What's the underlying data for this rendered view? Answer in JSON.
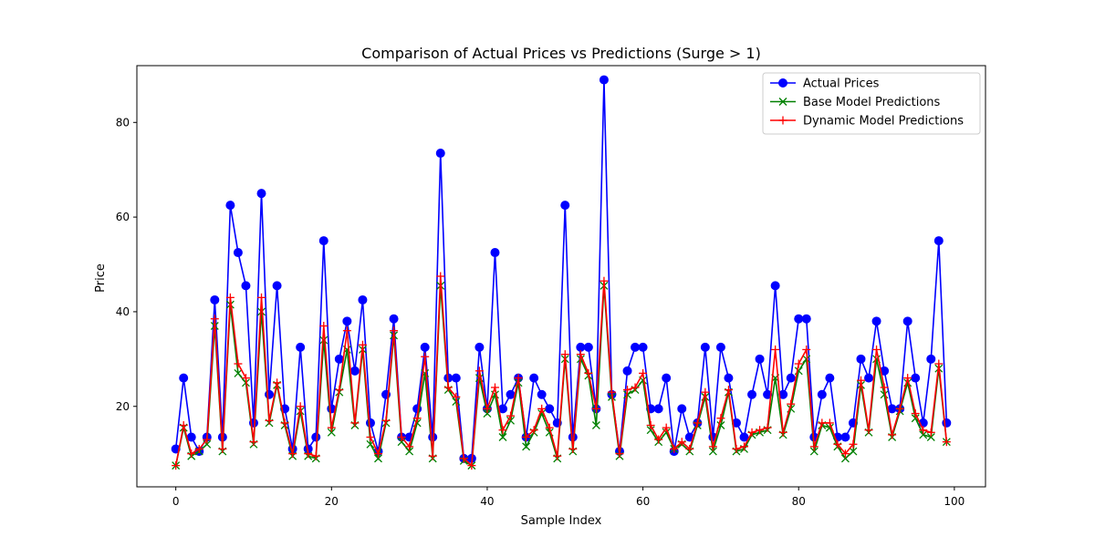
{
  "chart_data": {
    "type": "line",
    "title": "Comparison of Actual Prices vs Predictions (Surge > 1)",
    "xlabel": "Sample Index",
    "ylabel": "Price",
    "xlim": [
      -5,
      104
    ],
    "ylim": [
      3,
      92
    ],
    "xticks": [
      0,
      20,
      40,
      60,
      80,
      100
    ],
    "yticks": [
      20,
      40,
      60,
      80
    ],
    "grid": false,
    "legend_position": "top-right",
    "series": [
      {
        "name": "Actual Prices",
        "color": "#0000ff",
        "marker": "circle",
        "values": [
          11,
          26,
          13.5,
          10.5,
          13.5,
          42.5,
          13.5,
          62.5,
          52.5,
          45.5,
          16.5,
          65,
          22.5,
          45.5,
          19.5,
          11,
          32.5,
          11,
          13.5,
          55,
          19.5,
          30,
          38,
          27.5,
          42.5,
          16.5,
          10.5,
          22.5,
          38.5,
          13.5,
          13.5,
          19.5,
          32.5,
          13.5,
          73.5,
          26,
          26,
          9,
          9,
          32.5,
          19.5,
          52.5,
          19.5,
          22.5,
          26,
          13.5,
          26,
          22.5,
          19.5,
          16.5,
          62.5,
          13.5,
          32.5,
          32.5,
          19.5,
          89,
          22.5,
          10.5,
          27.5,
          32.5,
          32.5,
          19.5,
          19.5,
          26,
          10.5,
          19.5,
          13.5,
          16.5,
          32.5,
          13.5,
          32.5,
          26,
          16.5,
          13.5,
          22.5,
          30,
          22.5,
          45.5,
          22.5,
          26,
          38.5,
          38.5,
          13.5,
          22.5,
          26,
          13.5,
          13.5,
          16.5,
          30,
          26,
          38,
          27.5,
          19.5,
          19.5,
          38,
          26,
          16.5,
          30,
          55,
          16.5
        ]
      },
      {
        "name": "Base Model Predictions",
        "color": "#008000",
        "marker": "x",
        "values": [
          7.5,
          15.5,
          9.5,
          10.5,
          12,
          37,
          10.5,
          41.5,
          27,
          25,
          12,
          40,
          16.5,
          24.5,
          16,
          9.5,
          19,
          9.5,
          9,
          34,
          14.5,
          23,
          32,
          16,
          32,
          12,
          9,
          16.5,
          35,
          12.5,
          10.5,
          16.5,
          27,
          9,
          45.5,
          23.5,
          21,
          8.5,
          7.5,
          26,
          18.5,
          22.5,
          13.5,
          17,
          25,
          11.5,
          14.5,
          18.5,
          14.5,
          9,
          30,
          10.5,
          30,
          26.5,
          16,
          45.5,
          22,
          9.5,
          22.5,
          23.5,
          25.5,
          15,
          12.5,
          14.5,
          11,
          12,
          10.5,
          16,
          22,
          10.5,
          16,
          23,
          10.5,
          11,
          14,
          14.5,
          15,
          26,
          14,
          19.5,
          27.5,
          30,
          10.5,
          16,
          15.5,
          11.5,
          9,
          10.5,
          24.5,
          14.5,
          30,
          22.5,
          13.5,
          19,
          25,
          17.5,
          14,
          13.5,
          28,
          12.5
        ]
      },
      {
        "name": "Dynamic Model Predictions",
        "color": "#ff0000",
        "marker": "plus",
        "values": [
          7.5,
          16,
          10,
          11,
          13,
          38.5,
          11,
          43,
          29,
          26,
          12.5,
          43,
          17,
          25,
          16.5,
          10,
          20,
          10,
          9.5,
          37,
          15.5,
          23.5,
          36,
          16.5,
          33,
          13.5,
          10,
          17,
          36,
          13.5,
          11.5,
          17.5,
          30.5,
          9.5,
          47.5,
          24,
          22,
          9,
          7.5,
          27.5,
          19.5,
          24,
          15,
          18,
          26,
          13.5,
          15,
          19.5,
          15.5,
          9.5,
          31,
          11,
          31,
          27,
          19.5,
          46.5,
          23,
          10,
          23.5,
          24,
          27,
          16,
          13,
          15.5,
          11,
          12.5,
          11,
          16.5,
          23,
          11.5,
          17.5,
          23.5,
          11,
          11.5,
          14.5,
          15,
          15.5,
          32,
          14.5,
          20.5,
          29,
          32,
          11.5,
          16.5,
          16.5,
          12,
          10,
          12,
          25.5,
          15,
          32,
          24,
          14,
          19.5,
          26,
          18.5,
          15,
          14.5,
          29,
          12.5
        ]
      }
    ]
  }
}
